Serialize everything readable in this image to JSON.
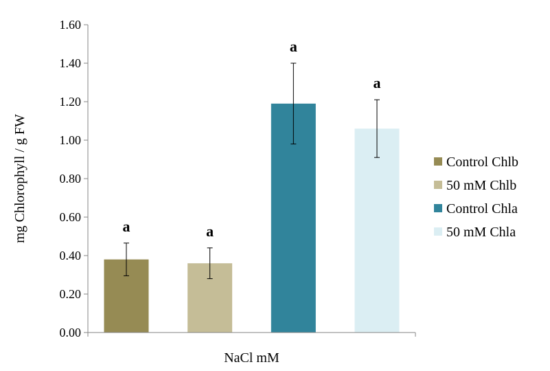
{
  "chart_data": {
    "type": "bar",
    "xlabel": "NaCl mM",
    "ylabel": "mg Chlorophyll / g FW",
    "ylim": [
      0,
      1.6
    ],
    "yticks": [
      "0.00",
      "0.20",
      "0.40",
      "0.60",
      "0.80",
      "1.00",
      "1.20",
      "1.40",
      "1.60"
    ],
    "ytick_values": [
      0,
      0.2,
      0.4,
      0.6,
      0.8,
      1.0,
      1.2,
      1.4,
      1.6
    ],
    "grid": false,
    "legend_position": "right",
    "series": [
      {
        "name": "Control Chlb",
        "value": 0.38,
        "error": 0.085,
        "label": "a",
        "color": "#968b54"
      },
      {
        "name": "50 mM Chlb",
        "value": 0.36,
        "error": 0.08,
        "label": "a",
        "color": "#c5bd97"
      },
      {
        "name": "Control Chla",
        "value": 1.19,
        "error": 0.21,
        "label": "a",
        "color": "#31849b"
      },
      {
        "name": "50 mM Chla",
        "value": 1.06,
        "error": 0.15,
        "label": "a",
        "color": "#dbeef3"
      }
    ]
  }
}
